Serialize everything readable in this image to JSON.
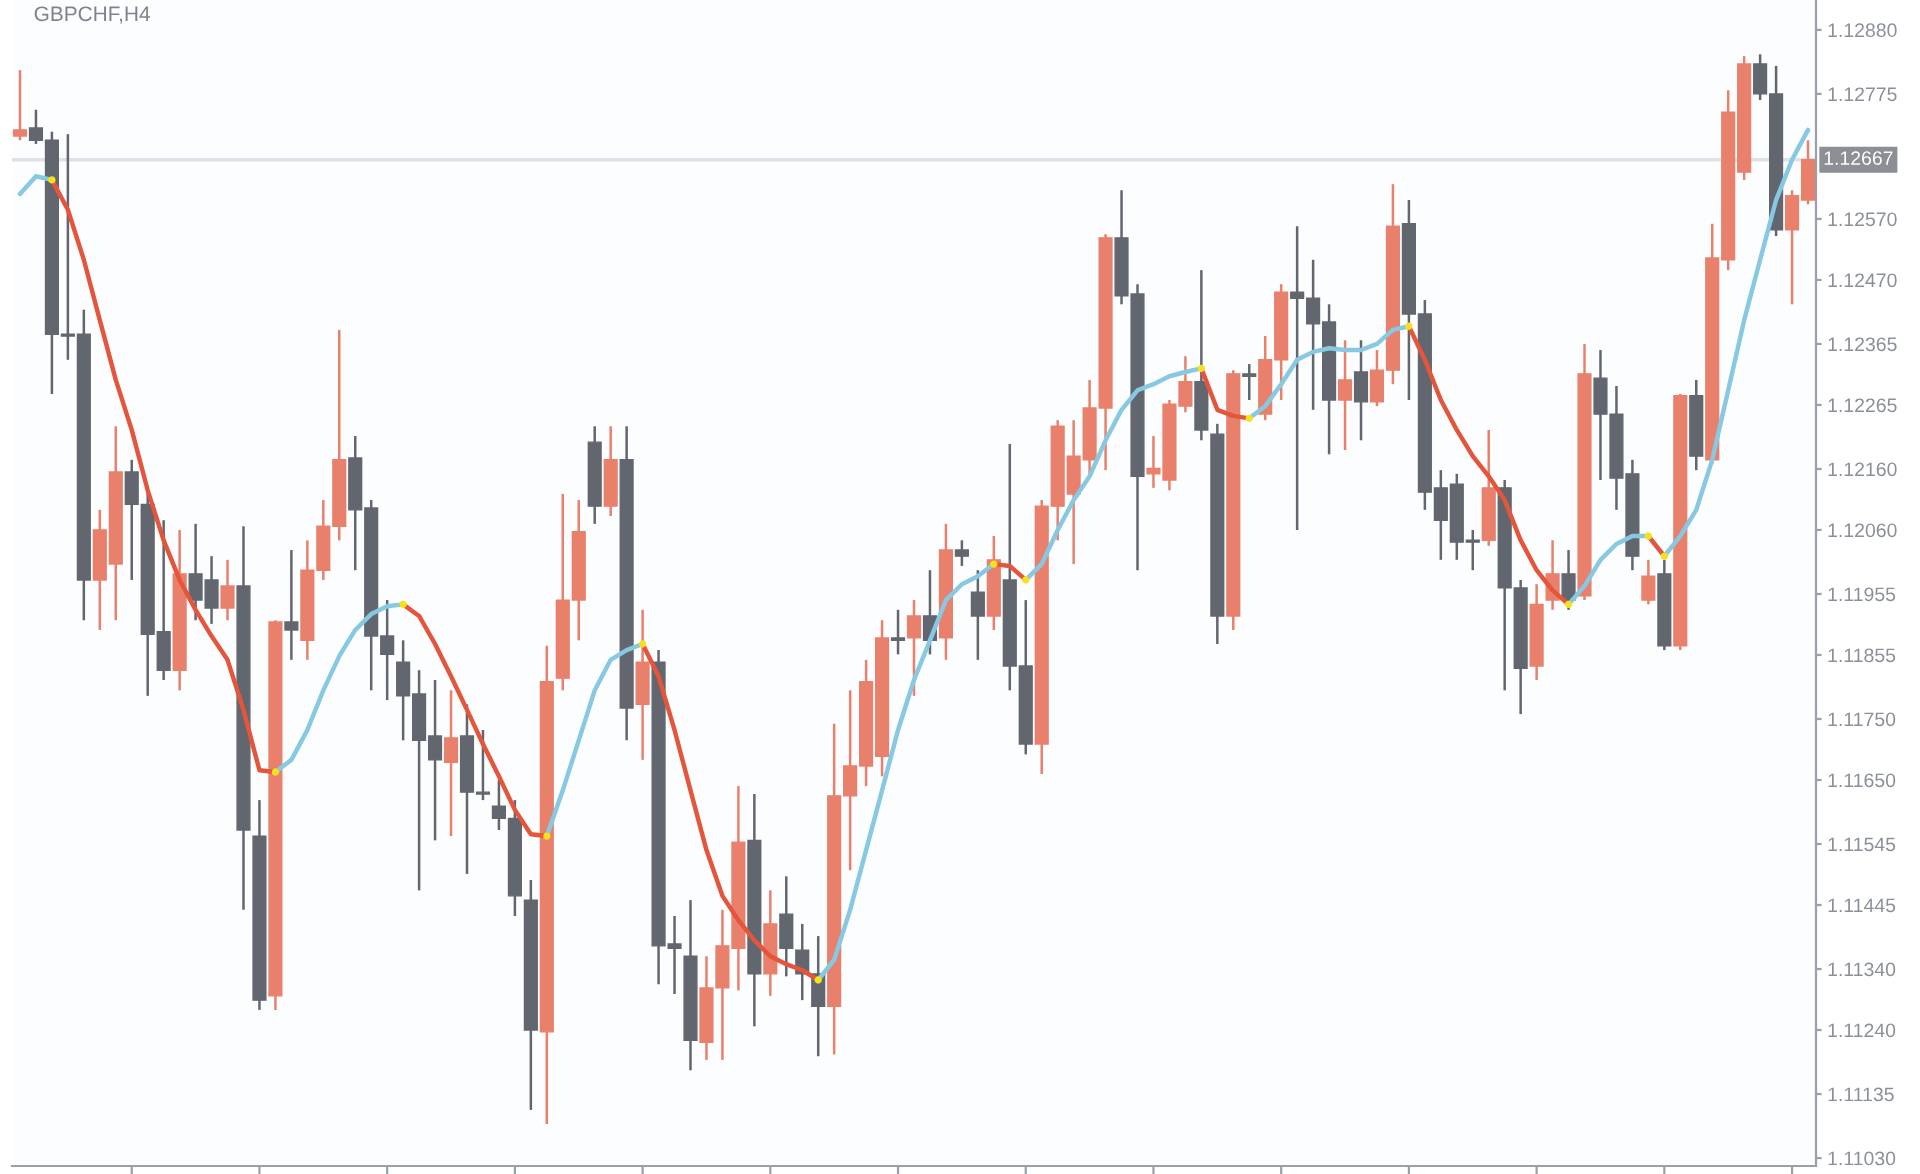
{
  "chart_data": {
    "type": "candlestick",
    "title": "GBPCHF,H4",
    "categories": [
      null,
      null,
      null,
      null,
      null,
      null,
      null,
      null,
      null,
      null,
      null,
      null,
      null,
      null,
      null,
      null,
      null,
      null,
      null,
      null,
      null,
      null,
      null,
      null,
      null,
      null,
      null,
      null,
      null,
      null,
      null,
      null,
      null,
      null,
      null,
      null,
      null,
      null,
      null,
      null,
      null,
      null,
      null,
      null,
      null,
      null,
      null,
      null,
      null,
      null,
      null,
      null,
      null,
      null,
      null,
      null,
      null,
      null,
      null,
      null,
      null,
      null,
      null,
      null,
      null,
      null,
      null,
      null,
      null,
      null,
      null,
      null,
      null,
      null,
      null,
      null,
      null,
      null,
      null,
      null,
      null,
      null,
      null,
      null,
      null,
      null,
      null,
      null,
      null,
      null,
      null,
      null,
      null,
      null,
      null,
      null,
      null,
      null,
      null,
      null,
      null,
      null,
      null,
      null,
      null,
      null,
      null,
      null,
      null,
      null,
      null,
      null,
      null
    ],
    "ohlc": [
      [
        1.12706,
        1.12814,
        1.12699,
        1.12716
      ],
      [
        1.12719,
        1.12749,
        1.12693,
        1.12699
      ],
      [
        1.12699,
        1.12713,
        1.12283,
        1.12381
      ],
      [
        1.12381,
        1.12709,
        1.12339,
        1.12378
      ],
      [
        1.12381,
        1.12421,
        1.11912,
        1.11978
      ],
      [
        1.11978,
        1.12093,
        1.11896,
        1.1206
      ],
      [
        1.12004,
        1.1223,
        1.11912,
        1.12155
      ],
      [
        1.12155,
        1.12175,
        1.11978,
        1.12102
      ],
      [
        1.12102,
        1.12125,
        1.11788,
        1.11889
      ],
      [
        1.11893,
        1.12076,
        1.11814,
        1.1183
      ],
      [
        1.1183,
        1.1206,
        1.11797,
        1.11988
      ],
      [
        1.11988,
        1.1207,
        1.11912,
        1.11945
      ],
      [
        1.11978,
        1.12017,
        1.11906,
        1.11932
      ],
      [
        1.11932,
        1.12011,
        1.11912,
        1.11968
      ],
      [
        1.11968,
        1.12066,
        1.11437,
        1.11568
      ],
      [
        1.11558,
        1.11617,
        1.11273,
        1.11289
      ],
      [
        1.11296,
        1.11912,
        1.11273,
        1.11909
      ],
      [
        1.11909,
        1.12027,
        1.11847,
        1.11896
      ],
      [
        1.11879,
        1.12043,
        1.11847,
        1.11994
      ],
      [
        1.11994,
        1.12109,
        1.11978,
        1.12066
      ],
      [
        1.12066,
        1.12388,
        1.12043,
        1.12175
      ],
      [
        1.12178,
        1.12214,
        1.11994,
        1.12093
      ],
      [
        1.12096,
        1.12109,
        1.11797,
        1.11886
      ],
      [
        1.11886,
        1.11945,
        1.11781,
        1.11856
      ],
      [
        1.11843,
        1.11879,
        1.11715,
        1.11788
      ],
      [
        1.11791,
        1.1183,
        1.11469,
        1.11715
      ],
      [
        1.11722,
        1.11814,
        1.11551,
        1.11683
      ],
      [
        1.11679,
        1.11797,
        1.11558,
        1.11719
      ],
      [
        1.11722,
        1.11774,
        1.11496,
        1.1163
      ],
      [
        1.1163,
        1.11732,
        1.11617,
        1.11627
      ],
      [
        1.11607,
        1.1165,
        1.11568,
        1.11587
      ],
      [
        1.11587,
        1.11617,
        1.11427,
        1.1146
      ],
      [
        1.11453,
        1.11486,
        1.11109,
        1.1124
      ],
      [
        1.11237,
        1.1187,
        1.11086,
        1.11811
      ],
      [
        1.11817,
        1.12119,
        1.11797,
        1.11945
      ],
      [
        1.11945,
        1.12109,
        1.11879,
        1.12057
      ],
      [
        1.12204,
        1.1223,
        1.1207,
        1.12099
      ],
      [
        1.12099,
        1.1223,
        1.12083,
        1.12175
      ],
      [
        1.12175,
        1.1223,
        1.11715,
        1.11768
      ],
      [
        1.11774,
        1.11929,
        1.11683,
        1.11843
      ],
      [
        1.11843,
        1.11863,
        1.11315,
        1.11378
      ],
      [
        1.11381,
        1.11427,
        1.11299,
        1.11374
      ],
      [
        1.11361,
        1.11453,
        1.11174,
        1.11223
      ],
      [
        1.1122,
        1.11361,
        1.11191,
        1.11309
      ],
      [
        1.11309,
        1.11437,
        1.11191,
        1.11378
      ],
      [
        1.11374,
        1.1164,
        1.11305,
        1.11548
      ],
      [
        1.11551,
        1.11627,
        1.11246,
        1.11332
      ],
      [
        1.11332,
        1.11469,
        1.11296,
        1.11414
      ],
      [
        1.1143,
        1.11492,
        1.11328,
        1.11374
      ],
      [
        1.11371,
        1.11414,
        1.11289,
        1.11332
      ],
      [
        1.11332,
        1.11394,
        1.11197,
        1.11279
      ],
      [
        1.11279,
        1.11742,
        1.112,
        1.11624
      ],
      [
        1.11624,
        1.11797,
        1.11502,
        1.11673
      ],
      [
        1.11673,
        1.11847,
        1.1164,
        1.11811
      ],
      [
        1.11689,
        1.11912,
        1.11656,
        1.11883
      ],
      [
        1.11883,
        1.11929,
        1.11856,
        1.11879
      ],
      [
        1.11883,
        1.11945,
        1.11788,
        1.11919
      ],
      [
        1.11919,
        1.11994,
        1.11856,
        1.11879
      ],
      [
        1.11883,
        1.1207,
        1.11847,
        1.12027
      ],
      [
        1.12027,
        1.12043,
        1.12001,
        1.12017
      ],
      [
        1.11958,
        1.11994,
        1.11847,
        1.11919
      ],
      [
        1.11919,
        1.1205,
        1.11896,
        1.12011
      ],
      [
        1.11978,
        1.12201,
        1.11797,
        1.11837
      ],
      [
        1.11837,
        1.11945,
        1.11692,
        1.11709
      ],
      [
        1.11709,
        1.12109,
        1.1166,
        1.12099
      ],
      [
        1.12099,
        1.1224,
        1.12043,
        1.1223
      ],
      [
        1.12119,
        1.1224,
        1.12004,
        1.12181
      ],
      [
        1.12175,
        1.12306,
        1.12148,
        1.1226
      ],
      [
        1.1226,
        1.12545,
        1.12158,
        1.12539
      ],
      [
        1.12539,
        1.12617,
        1.1243,
        1.12444
      ],
      [
        1.12447,
        1.12463,
        1.11994,
        1.12148
      ],
      [
        1.12152,
        1.12214,
        1.12129,
        1.12161
      ],
      [
        1.12142,
        1.12273,
        1.12125,
        1.12266
      ],
      [
        1.12263,
        1.12345,
        1.12253,
        1.12303
      ],
      [
        1.12303,
        1.12486,
        1.12207,
        1.12224
      ],
      [
        1.12217,
        1.12234,
        1.11873,
        1.11919
      ],
      [
        1.11919,
        1.12322,
        1.11896,
        1.12316
      ],
      [
        1.12316,
        1.12332,
        1.12273,
        1.12312
      ],
      [
        1.1225,
        1.12378,
        1.1224,
        1.12339
      ],
      [
        1.12339,
        1.12463,
        1.12273,
        1.1245
      ],
      [
        1.1245,
        1.12558,
        1.1206,
        1.1244
      ],
      [
        1.1244,
        1.12503,
        1.12257,
        1.12398
      ],
      [
        1.12401,
        1.1243,
        1.12184,
        1.12273
      ],
      [
        1.12273,
        1.12371,
        1.12191,
        1.12306
      ],
      [
        1.12319,
        1.12371,
        1.12207,
        1.1227
      ],
      [
        1.1227,
        1.12355,
        1.12263,
        1.12322
      ],
      [
        1.12322,
        1.12627,
        1.12299,
        1.12558
      ],
      [
        1.12562,
        1.12601,
        1.12273,
        1.12414
      ],
      [
        1.12414,
        1.12437,
        1.12093,
        1.12122
      ],
      [
        1.12129,
        1.12158,
        1.12011,
        1.12076
      ],
      [
        1.12135,
        1.12152,
        1.12011,
        1.1204
      ],
      [
        1.12043,
        1.1206,
        1.11994,
        1.1204
      ],
      [
        1.12043,
        1.12224,
        1.12034,
        1.12129
      ],
      [
        1.12129,
        1.12142,
        1.11797,
        1.11965
      ],
      [
        1.11965,
        1.11978,
        1.11758,
        1.11833
      ],
      [
        1.11837,
        1.11971,
        1.11814,
        1.11938
      ],
      [
        1.11945,
        1.12043,
        1.11929,
        1.11988
      ],
      [
        1.11988,
        1.12027,
        1.11929,
        1.11945
      ],
      [
        1.11952,
        1.12365,
        1.11945,
        1.12316
      ],
      [
        1.12309,
        1.12355,
        1.12142,
        1.1225
      ],
      [
        1.1225,
        1.12296,
        1.12093,
        1.12145
      ],
      [
        1.12152,
        1.12175,
        1.11994,
        1.12017
      ],
      [
        1.11945,
        1.12011,
        1.11938,
        1.11984
      ],
      [
        1.11988,
        1.12011,
        1.11863,
        1.1187
      ],
      [
        1.1187,
        1.12283,
        1.11863,
        1.1228
      ],
      [
        1.1228,
        1.12306,
        1.12158,
        1.12181
      ],
      [
        1.12175,
        1.12562,
        1.12168,
        1.12506
      ],
      [
        1.12503,
        1.12781,
        1.12486,
        1.12745
      ],
      [
        1.12647,
        1.12837,
        1.12634,
        1.12824
      ],
      [
        1.12824,
        1.1284,
        1.12765,
        1.12775
      ],
      [
        1.12775,
        1.12821,
        1.12542,
        1.12552
      ],
      [
        1.12552,
        1.12617,
        1.1243,
        1.12608
      ],
      [
        1.12601,
        1.12699,
        1.12594,
        1.12667
      ]
    ],
    "colors": [
      "#e8806c",
      "#62666f",
      "#62666f",
      "#62666f",
      "#62666f",
      "#e8806c",
      "#e8806c",
      "#62666f",
      "#62666f",
      "#62666f",
      "#e8806c",
      "#62666f",
      "#62666f",
      "#e8806c",
      "#62666f",
      "#62666f",
      "#e8806c",
      "#62666f",
      "#e8806c",
      "#e8806c",
      "#e8806c",
      "#62666f",
      "#62666f",
      "#62666f",
      "#62666f",
      "#62666f",
      "#62666f",
      "#e8806c",
      "#62666f",
      "#62666f",
      "#62666f",
      "#62666f",
      "#62666f",
      "#e8806c",
      "#e8806c",
      "#e8806c",
      "#62666f",
      "#e8806c",
      "#62666f",
      "#e8806c",
      "#62666f",
      "#62666f",
      "#62666f",
      "#e8806c",
      "#e8806c",
      "#e8806c",
      "#62666f",
      "#e8806c",
      "#62666f",
      "#62666f",
      "#62666f",
      "#e8806c",
      "#e8806c",
      "#e8806c",
      "#e8806c",
      "#62666f",
      "#e8806c",
      "#62666f",
      "#e8806c",
      "#62666f",
      "#62666f",
      "#e8806c",
      "#62666f",
      "#62666f",
      "#e8806c",
      "#e8806c",
      "#e8806c",
      "#e8806c",
      "#e8806c",
      "#62666f",
      "#62666f",
      "#e8806c",
      "#e8806c",
      "#e8806c",
      "#62666f",
      "#62666f",
      "#e8806c",
      "#62666f",
      "#e8806c",
      "#e8806c",
      "#62666f",
      "#62666f",
      "#62666f",
      "#e8806c",
      "#62666f",
      "#e8806c",
      "#e8806c",
      "#62666f",
      "#62666f",
      "#62666f",
      "#62666f",
      "#62666f",
      "#e8806c",
      "#62666f",
      "#62666f",
      "#e8806c",
      "#e8806c",
      "#62666f",
      "#e8806c",
      "#62666f",
      "#62666f",
      "#62666f",
      "#e8806c",
      "#62666f",
      "#e8806c",
      "#62666f",
      "#e8806c",
      "#e8806c",
      "#e8806c",
      "#62666f",
      "#62666f",
      "#e8806c",
      "#e8806c"
    ],
    "series": [
      {
        "type": "line",
        "color": "#87c8e2",
        "values": [
          1.12611,
          1.1264,
          1.12634,
          null,
          null,
          null,
          null,
          null,
          null,
          null,
          null,
          null,
          null,
          null,
          null,
          null,
          1.11663,
          1.11683,
          1.11732,
          1.11797,
          1.11853,
          1.11896,
          1.11922,
          1.11935,
          1.11938,
          null,
          null,
          null,
          null,
          null,
          null,
          null,
          null,
          1.11558,
          1.11633,
          1.11715,
          1.11797,
          1.11847,
          1.11863,
          1.11873,
          null,
          null,
          null,
          null,
          null,
          null,
          null,
          null,
          null,
          null,
          1.11322,
          1.11355,
          1.11437,
          1.11535,
          1.11633,
          1.11732,
          1.11814,
          1.11879,
          1.11945,
          1.11971,
          1.11984,
          1.12004,
          null,
          1.11978,
          1.12004,
          1.1206,
          1.12109,
          1.12148,
          1.12207,
          1.12257,
          1.12289,
          1.12299,
          1.12312,
          1.12319,
          1.12325,
          null,
          null,
          1.12243,
          1.12263,
          1.12299,
          1.12339,
          1.12352,
          1.12358,
          1.12355,
          1.12355,
          1.12365,
          1.12388,
          1.12394,
          null,
          null,
          null,
          null,
          null,
          null,
          null,
          null,
          null,
          1.11938,
          1.11968,
          1.12011,
          1.12037,
          1.1205,
          1.1205,
          1.12017,
          1.1205,
          1.12093,
          1.12175,
          1.12289,
          1.12404,
          1.12503,
          1.12601,
          1.12667,
          1.12716
        ]
      },
      {
        "type": "line",
        "color": "#e4553c",
        "values": [
          null,
          null,
          1.12634,
          1.12585,
          1.12503,
          1.12404,
          1.12306,
          1.12224,
          1.12125,
          1.12043,
          1.11978,
          1.11929,
          1.11886,
          1.11847,
          1.11765,
          1.11666,
          1.11663,
          null,
          null,
          null,
          null,
          null,
          null,
          null,
          1.11938,
          1.11919,
          1.11873,
          1.1182,
          1.11765,
          1.11709,
          1.11656,
          1.11601,
          1.11561,
          1.11558,
          null,
          null,
          null,
          null,
          null,
          1.11873,
          1.1182,
          1.11732,
          1.11633,
          1.11535,
          1.1146,
          1.1142,
          1.11387,
          1.11361,
          1.11348,
          1.11338,
          1.11322,
          null,
          null,
          null,
          null,
          null,
          null,
          null,
          null,
          null,
          null,
          1.12004,
          1.12001,
          1.11978,
          null,
          null,
          null,
          null,
          null,
          null,
          null,
          null,
          null,
          null,
          1.12325,
          1.12257,
          1.12247,
          1.12243,
          null,
          null,
          null,
          null,
          null,
          null,
          null,
          null,
          null,
          1.12394,
          1.12339,
          1.12273,
          1.12224,
          1.12181,
          1.12148,
          1.12109,
          1.12043,
          1.11994,
          1.11961,
          1.11938,
          null,
          null,
          null,
          null,
          1.1205,
          1.12017,
          null,
          null,
          null,
          null,
          null,
          null,
          null,
          null,
          null
        ]
      },
      {
        "type": "scatter",
        "color": "#f5e21a",
        "values": [
          null,
          null,
          1.12634,
          null,
          null,
          null,
          null,
          null,
          null,
          null,
          null,
          null,
          null,
          null,
          null,
          null,
          1.11663,
          null,
          null,
          null,
          null,
          null,
          null,
          null,
          1.11938,
          null,
          null,
          null,
          null,
          null,
          null,
          null,
          null,
          1.11558,
          null,
          null,
          null,
          null,
          null,
          1.11873,
          null,
          null,
          null,
          null,
          null,
          null,
          null,
          null,
          null,
          null,
          1.11322,
          null,
          null,
          null,
          null,
          null,
          null,
          null,
          null,
          null,
          null,
          1.12004,
          null,
          1.11978,
          null,
          null,
          null,
          null,
          null,
          null,
          null,
          null,
          null,
          null,
          1.12325,
          null,
          null,
          1.12243,
          null,
          null,
          null,
          null,
          null,
          null,
          null,
          null,
          null,
          1.12394,
          null,
          null,
          null,
          null,
          null,
          null,
          null,
          null,
          null,
          1.11938,
          null,
          null,
          null,
          null,
          1.1205,
          1.12017,
          null,
          null,
          null,
          null,
          null,
          null,
          null,
          null,
          null
        ]
      }
    ],
    "ylim": [
      1.11017,
      1.12929
    ],
    "yticks": [
      {
        "value": 1.1288,
        "label": "1.12880"
      },
      {
        "value": 1.12775,
        "label": "1.12775"
      },
      {
        "value": 1.1257,
        "label": "1.12570"
      },
      {
        "value": 1.1247,
        "label": "1.12470"
      },
      {
        "value": 1.12365,
        "label": "1.12365"
      },
      {
        "value": 1.12265,
        "label": "1.12265"
      },
      {
        "value": 1.1216,
        "label": "1.12160"
      },
      {
        "value": 1.1206,
        "label": "1.12060"
      },
      {
        "value": 1.11955,
        "label": "1.11955"
      },
      {
        "value": 1.11855,
        "label": "1.11855"
      },
      {
        "value": 1.1175,
        "label": "1.11750"
      },
      {
        "value": 1.1165,
        "label": "1.11650"
      },
      {
        "value": 1.11545,
        "label": "1.11545"
      },
      {
        "value": 1.11445,
        "label": "1.11445"
      },
      {
        "value": 1.1134,
        "label": "1.11340"
      },
      {
        "value": 1.1124,
        "label": "1.11240"
      },
      {
        "value": 1.11135,
        "label": "1.11135"
      },
      {
        "value": 1.1103,
        "label": "1.11030"
      }
    ],
    "ref_lines": [
      {
        "axis": "y",
        "value": 1.12667,
        "label": "1.12667",
        "color": "#dde2ea"
      }
    ]
  }
}
